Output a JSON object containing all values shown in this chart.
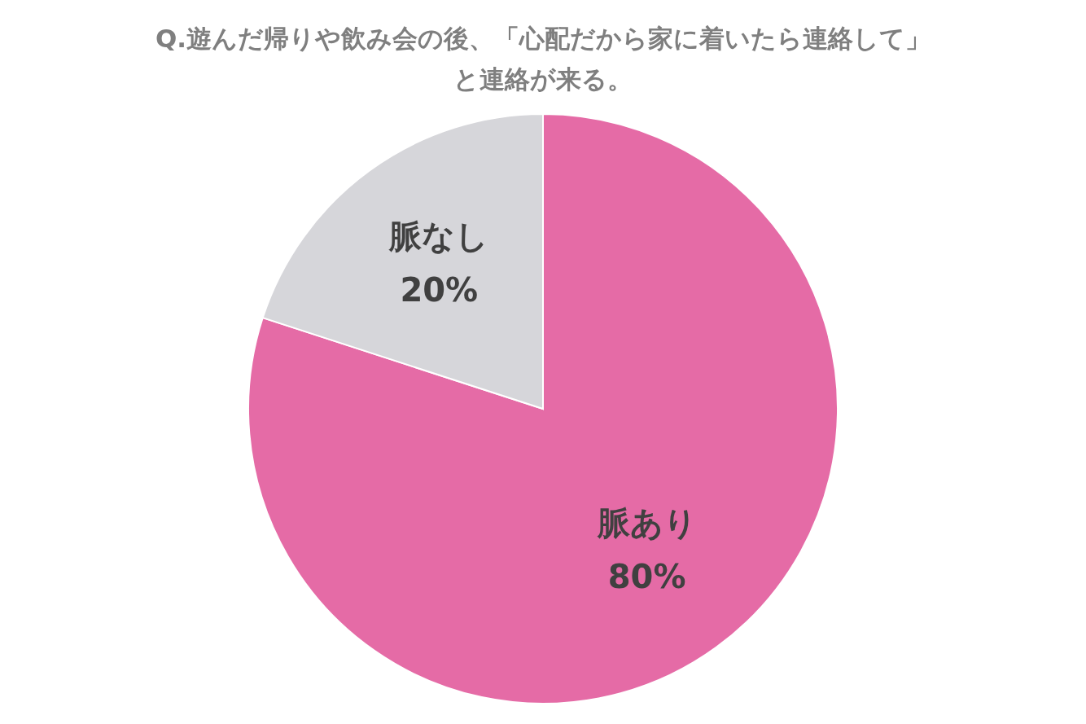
{
  "chart_data": {
    "type": "pie",
    "title": "Q.遊んだ帰りや飲み会の後、「心配だから家に着いたら連絡して」と連絡が来る。",
    "categories": [
      "脈あり",
      "脈なし"
    ],
    "values": [
      80,
      20
    ],
    "value_labels": [
      "80%",
      "20%"
    ],
    "colors": [
      "#e56ba6",
      "#d6d6da"
    ]
  }
}
